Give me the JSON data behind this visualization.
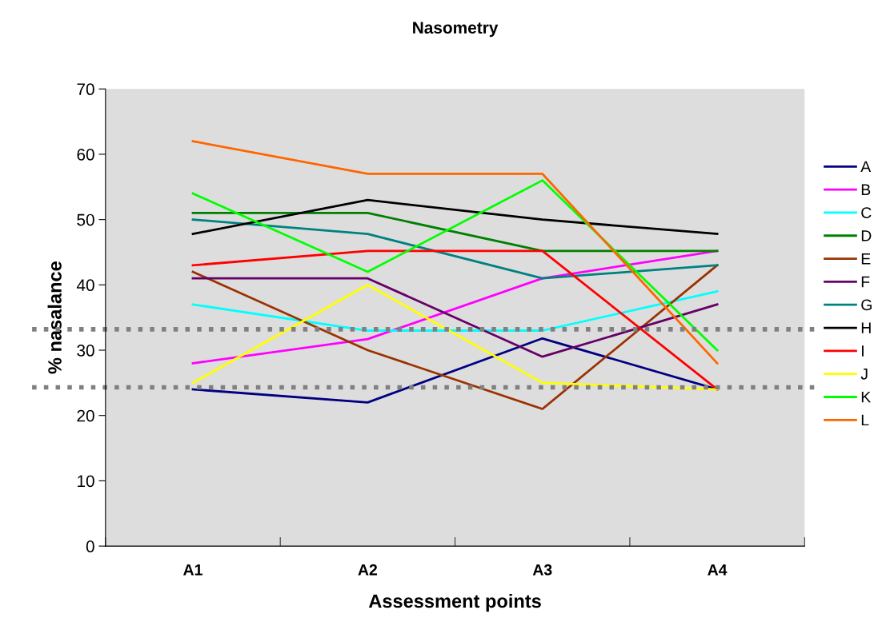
{
  "chart_data": {
    "type": "line",
    "title": "Nasometry",
    "xlabel": "Assessment points",
    "ylabel": "% nasalance",
    "categories": [
      "A1",
      "A2",
      "A3",
      "A4"
    ],
    "series": [
      {
        "name": "A",
        "color": "#000080",
        "values": [
          24,
          22,
          31.8,
          24
        ]
      },
      {
        "name": "B",
        "color": "#ff00ff",
        "values": [
          28,
          31.7,
          41,
          45.2
        ]
      },
      {
        "name": "C",
        "color": "#00ffff",
        "values": [
          37,
          33,
          33,
          39
        ]
      },
      {
        "name": "D",
        "color": "#008000",
        "values": [
          51,
          51,
          45.2,
          45.2
        ]
      },
      {
        "name": "E",
        "color": "#993300",
        "values": [
          42,
          30,
          21,
          43
        ]
      },
      {
        "name": "F",
        "color": "#660066",
        "values": [
          41,
          41,
          29,
          37
        ]
      },
      {
        "name": "G",
        "color": "#008080",
        "values": [
          50,
          47.8,
          41,
          43
        ]
      },
      {
        "name": "H",
        "color": "#000000",
        "values": [
          47.8,
          53,
          50,
          47.8
        ]
      },
      {
        "name": "I",
        "color": "#ff0000",
        "values": [
          43,
          45.2,
          45.2,
          24
        ]
      },
      {
        "name": "J",
        "color": "#ffff00",
        "values": [
          25,
          40,
          25,
          24
        ]
      },
      {
        "name": "K",
        "color": "#00ff00",
        "values": [
          54,
          42,
          56,
          30
        ]
      },
      {
        "name": "L",
        "color": "#ff6600",
        "values": [
          62,
          57,
          57,
          28
        ]
      }
    ],
    "ylim": [
      0,
      70
    ],
    "yticks": [
      0,
      10,
      20,
      30,
      40,
      50,
      60,
      70
    ],
    "ref_lines": [
      {
        "axis": "y",
        "value": 33.2,
        "color": "#808080",
        "line_style": "dotted"
      },
      {
        "axis": "y",
        "value": 24.3,
        "color": "#808080",
        "line_style": "dotted"
      }
    ],
    "grid": false,
    "legend": "right",
    "marker": "none",
    "line_style": "solid"
  }
}
